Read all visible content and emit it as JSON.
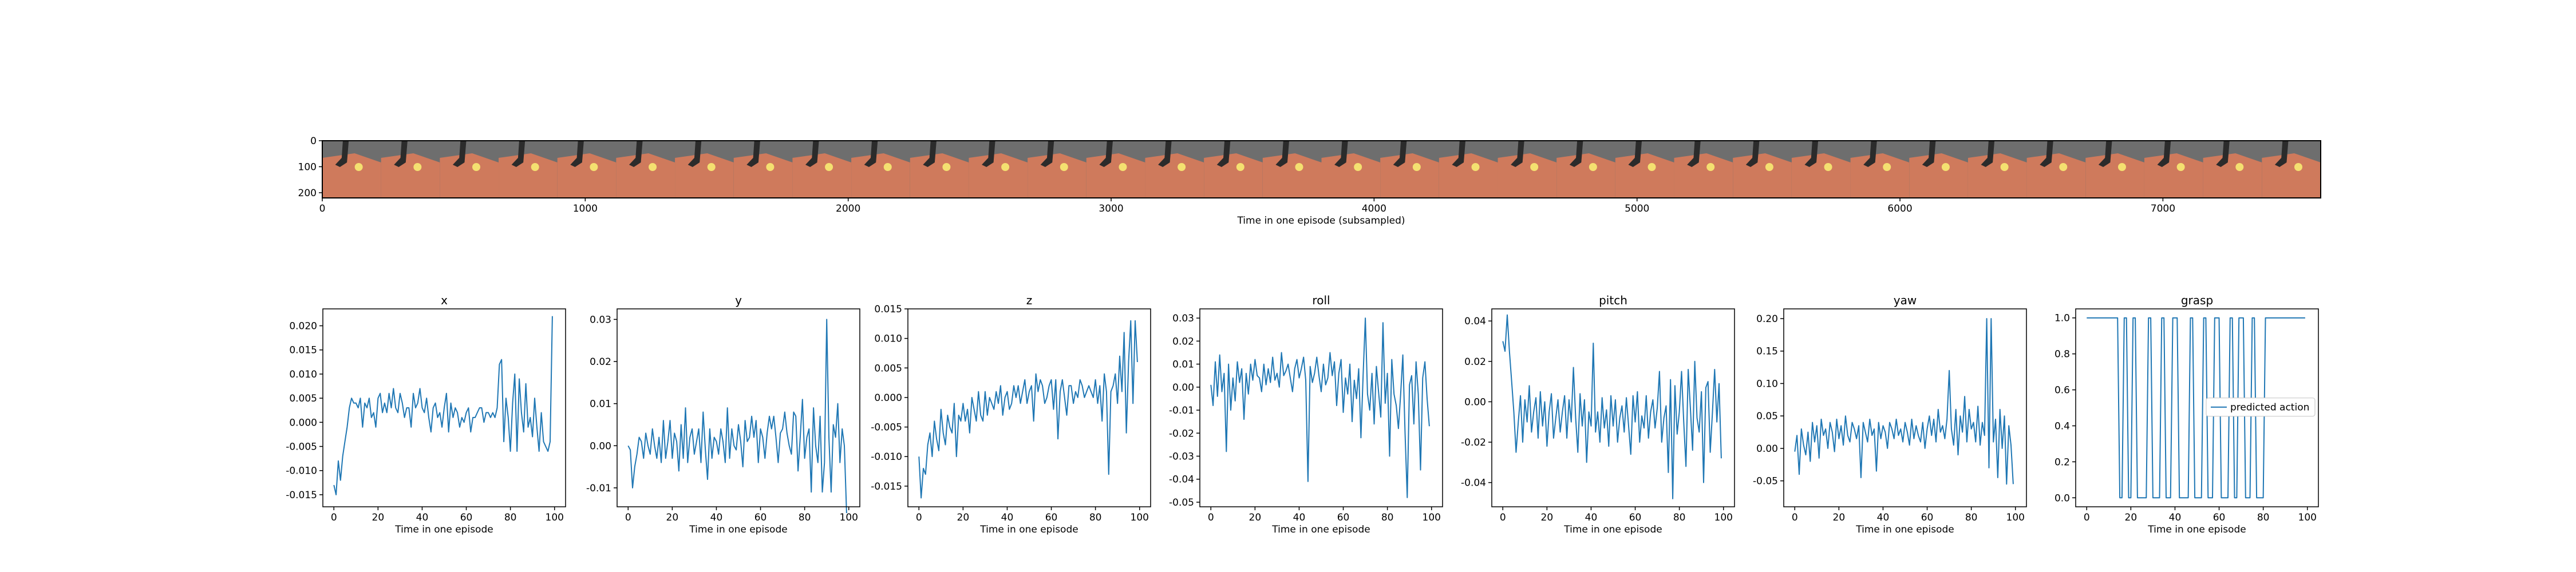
{
  "filmstrip": {
    "xlabel": "Time in one episode (subsampled)",
    "x_ticks": [
      "0",
      "1000",
      "2000",
      "3000",
      "4000",
      "5000",
      "6000",
      "7000"
    ],
    "y_ticks": [
      "0",
      "100",
      "200"
    ],
    "frame_count": 34,
    "colors": {
      "floor": "#cf7a5c",
      "background": "#6e6e6e",
      "gripper": "#2b2b2b",
      "object": "#f4e070"
    }
  },
  "chart_data": [
    {
      "type": "line",
      "title": "x",
      "xlabel": "Time in one episode",
      "xlim": [
        -5,
        105
      ],
      "ylim": [
        -0.0175,
        0.0235
      ],
      "yticks": [
        "0.020",
        "0.015",
        "0.010",
        "0.005",
        "0.000",
        "-0.005",
        "-0.010",
        "-0.015"
      ],
      "xticks": [
        "0",
        "20",
        "40",
        "60",
        "80",
        "100"
      ],
      "x_range": [
        0,
        99
      ],
      "values": [
        -0.013,
        -0.015,
        -0.008,
        -0.012,
        -0.007,
        -0.004,
        -0.001,
        0.003,
        0.005,
        0.004,
        0.004,
        0.003,
        0.005,
        -0.001,
        0.004,
        0.003,
        0.005,
        0.001,
        0.002,
        -0.001,
        0.005,
        0.006,
        0.002,
        0.004,
        0.002,
        0.006,
        0.003,
        0.007,
        0.003,
        0.002,
        0.006,
        0.004,
        0.001,
        0.003,
        0.003,
        -0.001,
        0.006,
        0.003,
        0.004,
        0.007,
        0.003,
        0.002,
        0.005,
        0.001,
        -0.002,
        0.003,
        0.004,
        0.001,
        0.002,
        -0.001,
        0.003,
        0.006,
        -0.002,
        0.004,
        0.001,
        0.003,
        0.002,
        -0.001,
        0.001,
        0.0,
        0.002,
        0.003,
        -0.002,
        0.001,
        0.001,
        0.002,
        0.003,
        0.003,
        0.0,
        0.002,
        0.002,
        0.001,
        0.002,
        0.001,
        0.003,
        0.012,
        0.013,
        -0.004,
        0.005,
        0.001,
        -0.006,
        0.004,
        0.01,
        -0.006,
        0.009,
        0.002,
        -0.002,
        0.008,
        -0.001,
        0.001,
        -0.003,
        0.005,
        -0.001,
        -0.006,
        0.002,
        -0.004,
        -0.005,
        -0.006,
        -0.004,
        0.022
      ]
    },
    {
      "type": "line",
      "title": "y",
      "xlabel": "Time in one episode",
      "xlim": [
        -5,
        105
      ],
      "ylim": [
        -0.0145,
        0.0325
      ],
      "yticks": [
        "0.03",
        "0.02",
        "0.01",
        "0.00",
        "-0.01"
      ],
      "xticks": [
        "0",
        "20",
        "40",
        "60",
        "80",
        "100"
      ],
      "x_range": [
        0,
        99
      ],
      "values": [
        0.0,
        -0.001,
        -0.01,
        -0.005,
        -0.002,
        0.002,
        0.001,
        -0.003,
        0.003,
        0.0,
        -0.002,
        0.004,
        0.0,
        -0.003,
        0.002,
        -0.004,
        0.006,
        -0.003,
        0.001,
        0.006,
        -0.003,
        0.003,
        0.001,
        -0.006,
        0.005,
        -0.003,
        0.009,
        -0.004,
        0.002,
        0.004,
        -0.002,
        0.001,
        0.004,
        -0.004,
        0.008,
        -0.001,
        -0.008,
        0.004,
        -0.003,
        0.002,
        0.001,
        -0.002,
        0.004,
        0.001,
        -0.004,
        0.009,
        -0.003,
        0.004,
        0.0,
        -0.001,
        0.005,
        0.001,
        -0.005,
        0.006,
        0.001,
        0.002,
        0.007,
        0.002,
        0.006,
        -0.004,
        0.004,
        0.002,
        -0.003,
        0.003,
        0.007,
        0.004,
        0.007,
        0.002,
        -0.004,
        0.003,
        0.004,
        0.008,
        0.003,
        0.0,
        -0.002,
        0.008,
        0.007,
        -0.006,
        0.002,
        0.011,
        -0.003,
        0.002,
        0.004,
        -0.011,
        0.009,
        0.0,
        -0.004,
        0.007,
        -0.011,
        -0.004,
        0.03,
        0.002,
        -0.011,
        0.005,
        0.002,
        0.01,
        -0.004,
        0.004,
        0.0,
        -0.016
      ]
    },
    {
      "type": "line",
      "title": "z",
      "xlabel": "Time in one episode",
      "xlim": [
        -5,
        105
      ],
      "ylim": [
        -0.0185,
        0.015
      ],
      "yticks": [
        "0.015",
        "0.010",
        "0.005",
        "0.000",
        "-0.005",
        "-0.010",
        "-0.015"
      ],
      "xticks": [
        "0",
        "20",
        "40",
        "60",
        "80",
        "100"
      ],
      "x_range": [
        0,
        99
      ],
      "values": [
        -0.01,
        -0.017,
        -0.012,
        -0.013,
        -0.008,
        -0.006,
        -0.01,
        -0.004,
        -0.007,
        -0.009,
        -0.002,
        -0.006,
        -0.008,
        -0.003,
        -0.005,
        -0.006,
        -0.001,
        -0.01,
        -0.003,
        -0.004,
        -0.001,
        -0.004,
        -0.002,
        -0.006,
        0.0,
        -0.002,
        -0.004,
        0.001,
        -0.003,
        -0.004,
        0.001,
        -0.003,
        0.0,
        -0.001,
        -0.002,
        0.001,
        -0.001,
        0.002,
        -0.003,
        0.0,
        0.001,
        -0.002,
        -0.001,
        0.002,
        0.0,
        0.002,
        -0.001,
        0.001,
        0.003,
        -0.001,
        0.001,
        0.002,
        -0.004,
        0.004,
        0.001,
        0.003,
        0.002,
        -0.001,
        0.0,
        0.002,
        0.003,
        -0.002,
        0.003,
        -0.007,
        0.001,
        0.003,
        0.0,
        -0.003,
        0.002,
        0.002,
        -0.001,
        0.001,
        0.0,
        0.003,
        0.002,
        0.0,
        0.001,
        0.002,
        0.001,
        0.0,
        0.003,
        -0.001,
        0.002,
        -0.004,
        0.004,
        0.001,
        -0.013,
        0.001,
        0.002,
        0.004,
        -0.001,
        0.007,
        0.001,
        0.011,
        -0.006,
        0.006,
        0.013,
        -0.001,
        0.013,
        0.006
      ]
    },
    {
      "type": "line",
      "title": "roll",
      "xlabel": "Time in one episode",
      "xlim": [
        -5,
        105
      ],
      "ylim": [
        -0.052,
        0.034
      ],
      "yticks": [
        "0.03",
        "0.02",
        "0.01",
        "0.00",
        "-0.01",
        "-0.02",
        "-0.03",
        "-0.04",
        "-0.05"
      ],
      "xticks": [
        "0",
        "20",
        "40",
        "60",
        "80",
        "100"
      ],
      "x_range": [
        0,
        99
      ],
      "values": [
        0.001,
        -0.008,
        0.011,
        -0.004,
        0.014,
        -0.002,
        0.006,
        -0.028,
        0.01,
        -0.01,
        0.004,
        -0.006,
        0.011,
        0.002,
        0.008,
        -0.014,
        0.006,
        -0.003,
        0.01,
        0.003,
        0.012,
        0.005,
        0.004,
        -0.002,
        0.01,
        0.001,
        0.008,
        0.002,
        0.013,
        0.003,
        0.006,
        0.0,
        0.015,
        0.005,
        0.007,
        0.01,
        0.004,
        -0.002,
        0.008,
        0.012,
        0.004,
        0.008,
        0.013,
        0.003,
        -0.041,
        0.009,
        0.002,
        0.006,
        0.013,
        0.005,
        -0.002,
        0.01,
        0.001,
        0.004,
        0.015,
        0.005,
        0.011,
        -0.008,
        0.006,
        0.012,
        -0.011,
        0.004,
        -0.003,
        0.01,
        -0.015,
        0.003,
        -0.005,
        0.008,
        -0.022,
        0.005,
        0.03,
        -0.003,
        -0.01,
        0.006,
        -0.016,
        0.009,
        -0.002,
        -0.013,
        0.028,
        -0.007,
        0.006,
        -0.03,
        0.012,
        -0.003,
        -0.008,
        -0.018,
        -0.003,
        0.014,
        -0.02,
        -0.048,
        0.001,
        0.005,
        -0.016,
        0.011,
        -0.003,
        -0.036,
        0.004,
        0.011,
        -0.005,
        -0.017
      ]
    },
    {
      "type": "line",
      "title": "pitch",
      "xlabel": "Time in one episode",
      "xlim": [
        -5,
        105
      ],
      "ylim": [
        -0.052,
        0.046
      ],
      "yticks": [
        "0.04",
        "0.02",
        "0.00",
        "-0.02",
        "-0.04"
      ],
      "xticks": [
        "0",
        "20",
        "40",
        "60",
        "80",
        "100"
      ],
      "x_range": [
        0,
        99
      ],
      "values": [
        0.03,
        0.025,
        0.043,
        0.025,
        0.01,
        -0.005,
        -0.025,
        -0.01,
        0.003,
        -0.02,
        0.001,
        -0.01,
        0.008,
        -0.015,
        -0.005,
        0.002,
        -0.018,
        0.005,
        -0.012,
        0.0,
        -0.022,
        -0.005,
        0.004,
        -0.018,
        -0.008,
        0.001,
        -0.015,
        -0.005,
        0.003,
        -0.018,
        0.001,
        -0.01,
        0.017,
        -0.008,
        -0.025,
        0.004,
        -0.012,
        0.001,
        -0.03,
        -0.005,
        -0.012,
        0.029,
        -0.015,
        -0.005,
        -0.02,
        0.002,
        -0.013,
        -0.004,
        -0.022,
        0.003,
        -0.012,
        0.001,
        -0.02,
        -0.008,
        -0.002,
        -0.015,
        0.002,
        -0.012,
        -0.026,
        0.003,
        -0.01,
        0.005,
        -0.02,
        -0.007,
        -0.013,
        0.003,
        -0.018,
        -0.005,
        0.001,
        -0.013,
        -0.003,
        0.015,
        -0.02,
        -0.008,
        -0.002,
        -0.035,
        0.011,
        -0.048,
        0.008,
        -0.016,
        -0.005,
        0.015,
        -0.01,
        -0.032,
        0.016,
        -0.003,
        -0.024,
        0.02,
        -0.008,
        -0.015,
        0.005,
        -0.04,
        0.007,
        0.01,
        -0.025,
        -0.005,
        0.016,
        -0.01,
        0.009,
        -0.028
      ]
    },
    {
      "type": "line",
      "title": "yaw",
      "xlabel": "Time in one episode",
      "xlim": [
        -5,
        105
      ],
      "ylim": [
        -0.09,
        0.215
      ],
      "yticks": [
        "0.20",
        "0.15",
        "0.10",
        "0.05",
        "0.00",
        "-0.05"
      ],
      "xticks": [
        "0",
        "20",
        "40",
        "60",
        "80",
        "100"
      ],
      "x_range": [
        0,
        99
      ],
      "values": [
        -0.005,
        0.02,
        -0.04,
        0.03,
        0.005,
        -0.01,
        0.025,
        -0.02,
        0.04,
        0.01,
        0.035,
        -0.015,
        0.045,
        0.02,
        0.03,
        0.0,
        0.04,
        0.025,
        -0.005,
        0.045,
        0.015,
        0.035,
        0.005,
        0.05,
        0.02,
        0.01,
        0.04,
        0.03,
        0.015,
        0.035,
        -0.045,
        0.04,
        0.025,
        0.01,
        0.045,
        0.02,
        0.03,
        -0.035,
        0.04,
        0.015,
        0.035,
        0.025,
        0.0,
        0.04,
        0.03,
        0.015,
        0.045,
        0.02,
        0.03,
        0.01,
        0.04,
        0.025,
        0.005,
        0.045,
        0.015,
        0.035,
        0.02,
        0.01,
        0.04,
        0.0,
        0.03,
        0.05,
        0.02,
        0.045,
        0.01,
        0.06,
        0.025,
        0.035,
        0.015,
        0.045,
        0.12,
        0.03,
        0.005,
        0.06,
        -0.01,
        0.05,
        0.025,
        0.08,
        0.01,
        0.06,
        0.03,
        0.04,
        0.01,
        0.065,
        0.005,
        0.04,
        0.02,
        0.2,
        -0.03,
        0.2,
        0.01,
        0.045,
        -0.045,
        0.06,
        0.0,
        0.05,
        -0.055,
        0.035,
        0.005,
        -0.055
      ]
    },
    {
      "type": "line",
      "title": "grasp",
      "xlabel": "Time in one episode",
      "xlim": [
        -5,
        105
      ],
      "ylim": [
        -0.05,
        1.05
      ],
      "yticks": [
        "1.0",
        "0.8",
        "0.6",
        "0.4",
        "0.2",
        "0.0"
      ],
      "xticks": [
        "0",
        "20",
        "40",
        "60",
        "80",
        "100"
      ],
      "x_range": [
        0,
        99
      ],
      "legend": {
        "label": "predicted action",
        "position": "center-right"
      },
      "values": [
        1,
        1,
        1,
        1,
        1,
        1,
        1,
        1,
        1,
        1,
        1,
        1,
        1,
        1,
        1,
        0,
        0,
        1,
        1,
        0,
        0,
        1,
        1,
        0,
        0,
        0,
        0,
        0,
        1,
        1,
        0,
        0,
        0,
        0,
        1,
        1,
        0,
        0,
        0,
        1,
        1,
        1,
        0,
        0,
        0,
        0,
        0,
        1,
        1,
        0,
        0,
        0,
        0,
        1,
        1,
        0,
        0,
        0,
        1,
        1,
        1,
        0,
        0,
        0,
        0,
        1,
        1,
        0,
        0,
        1,
        1,
        1,
        0,
        0,
        0,
        1,
        1,
        0,
        0,
        0,
        0,
        1,
        1,
        1,
        1,
        1,
        1,
        1,
        1,
        1,
        1,
        1,
        1,
        1,
        1,
        1,
        1,
        1,
        1,
        1
      ]
    }
  ]
}
